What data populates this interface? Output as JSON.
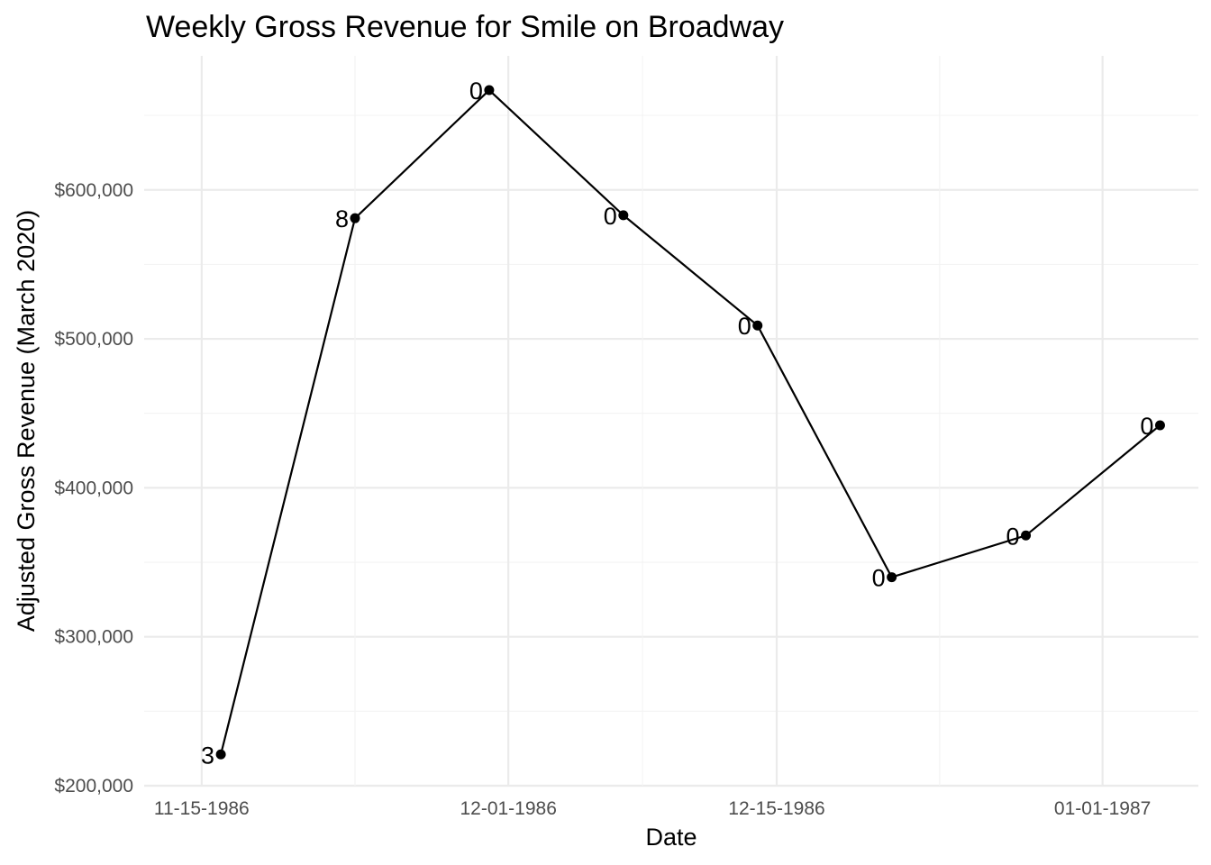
{
  "chart_data": {
    "type": "line",
    "title": "Weekly Gross Revenue for Smile on Broadway",
    "xlabel": "Date",
    "ylabel": "Adjusted Gross Revenue (March 2020)",
    "x_tick_labels": [
      "11-15-1986",
      "12-01-1986",
      "12-15-1986",
      "01-01-1987"
    ],
    "x_tick_dates": [
      "1986-11-15",
      "1986-12-01",
      "1986-12-15",
      "1987-01-01"
    ],
    "y_tick_labels": [
      "$200,000",
      "$300,000",
      "$400,000",
      "$500,000",
      "$600,000"
    ],
    "y_tick_values": [
      200000,
      300000,
      400000,
      500000,
      600000
    ],
    "xlim": [
      "1986-11-12",
      "1987-01-06"
    ],
    "ylim": [
      200000,
      690000
    ],
    "grid": true,
    "legend": "none",
    "points": [
      {
        "date": "1986-11-16",
        "value": 221000,
        "label": "3"
      },
      {
        "date": "1986-11-23",
        "value": 581000,
        "label": "8"
      },
      {
        "date": "1986-11-30",
        "value": 667000,
        "label": "0"
      },
      {
        "date": "1986-12-07",
        "value": 583000,
        "label": "0"
      },
      {
        "date": "1986-12-14",
        "value": 509000,
        "label": "0"
      },
      {
        "date": "1986-12-21",
        "value": 340000,
        "label": "0"
      },
      {
        "date": "1986-12-28",
        "value": 368000,
        "label": "0"
      },
      {
        "date": "1987-01-04",
        "value": 442000,
        "label": "0"
      }
    ],
    "colors": {
      "line": "#000000",
      "points": "#000000",
      "grid": "#ebebeb",
      "tick_text": "#4d4d4d"
    }
  }
}
